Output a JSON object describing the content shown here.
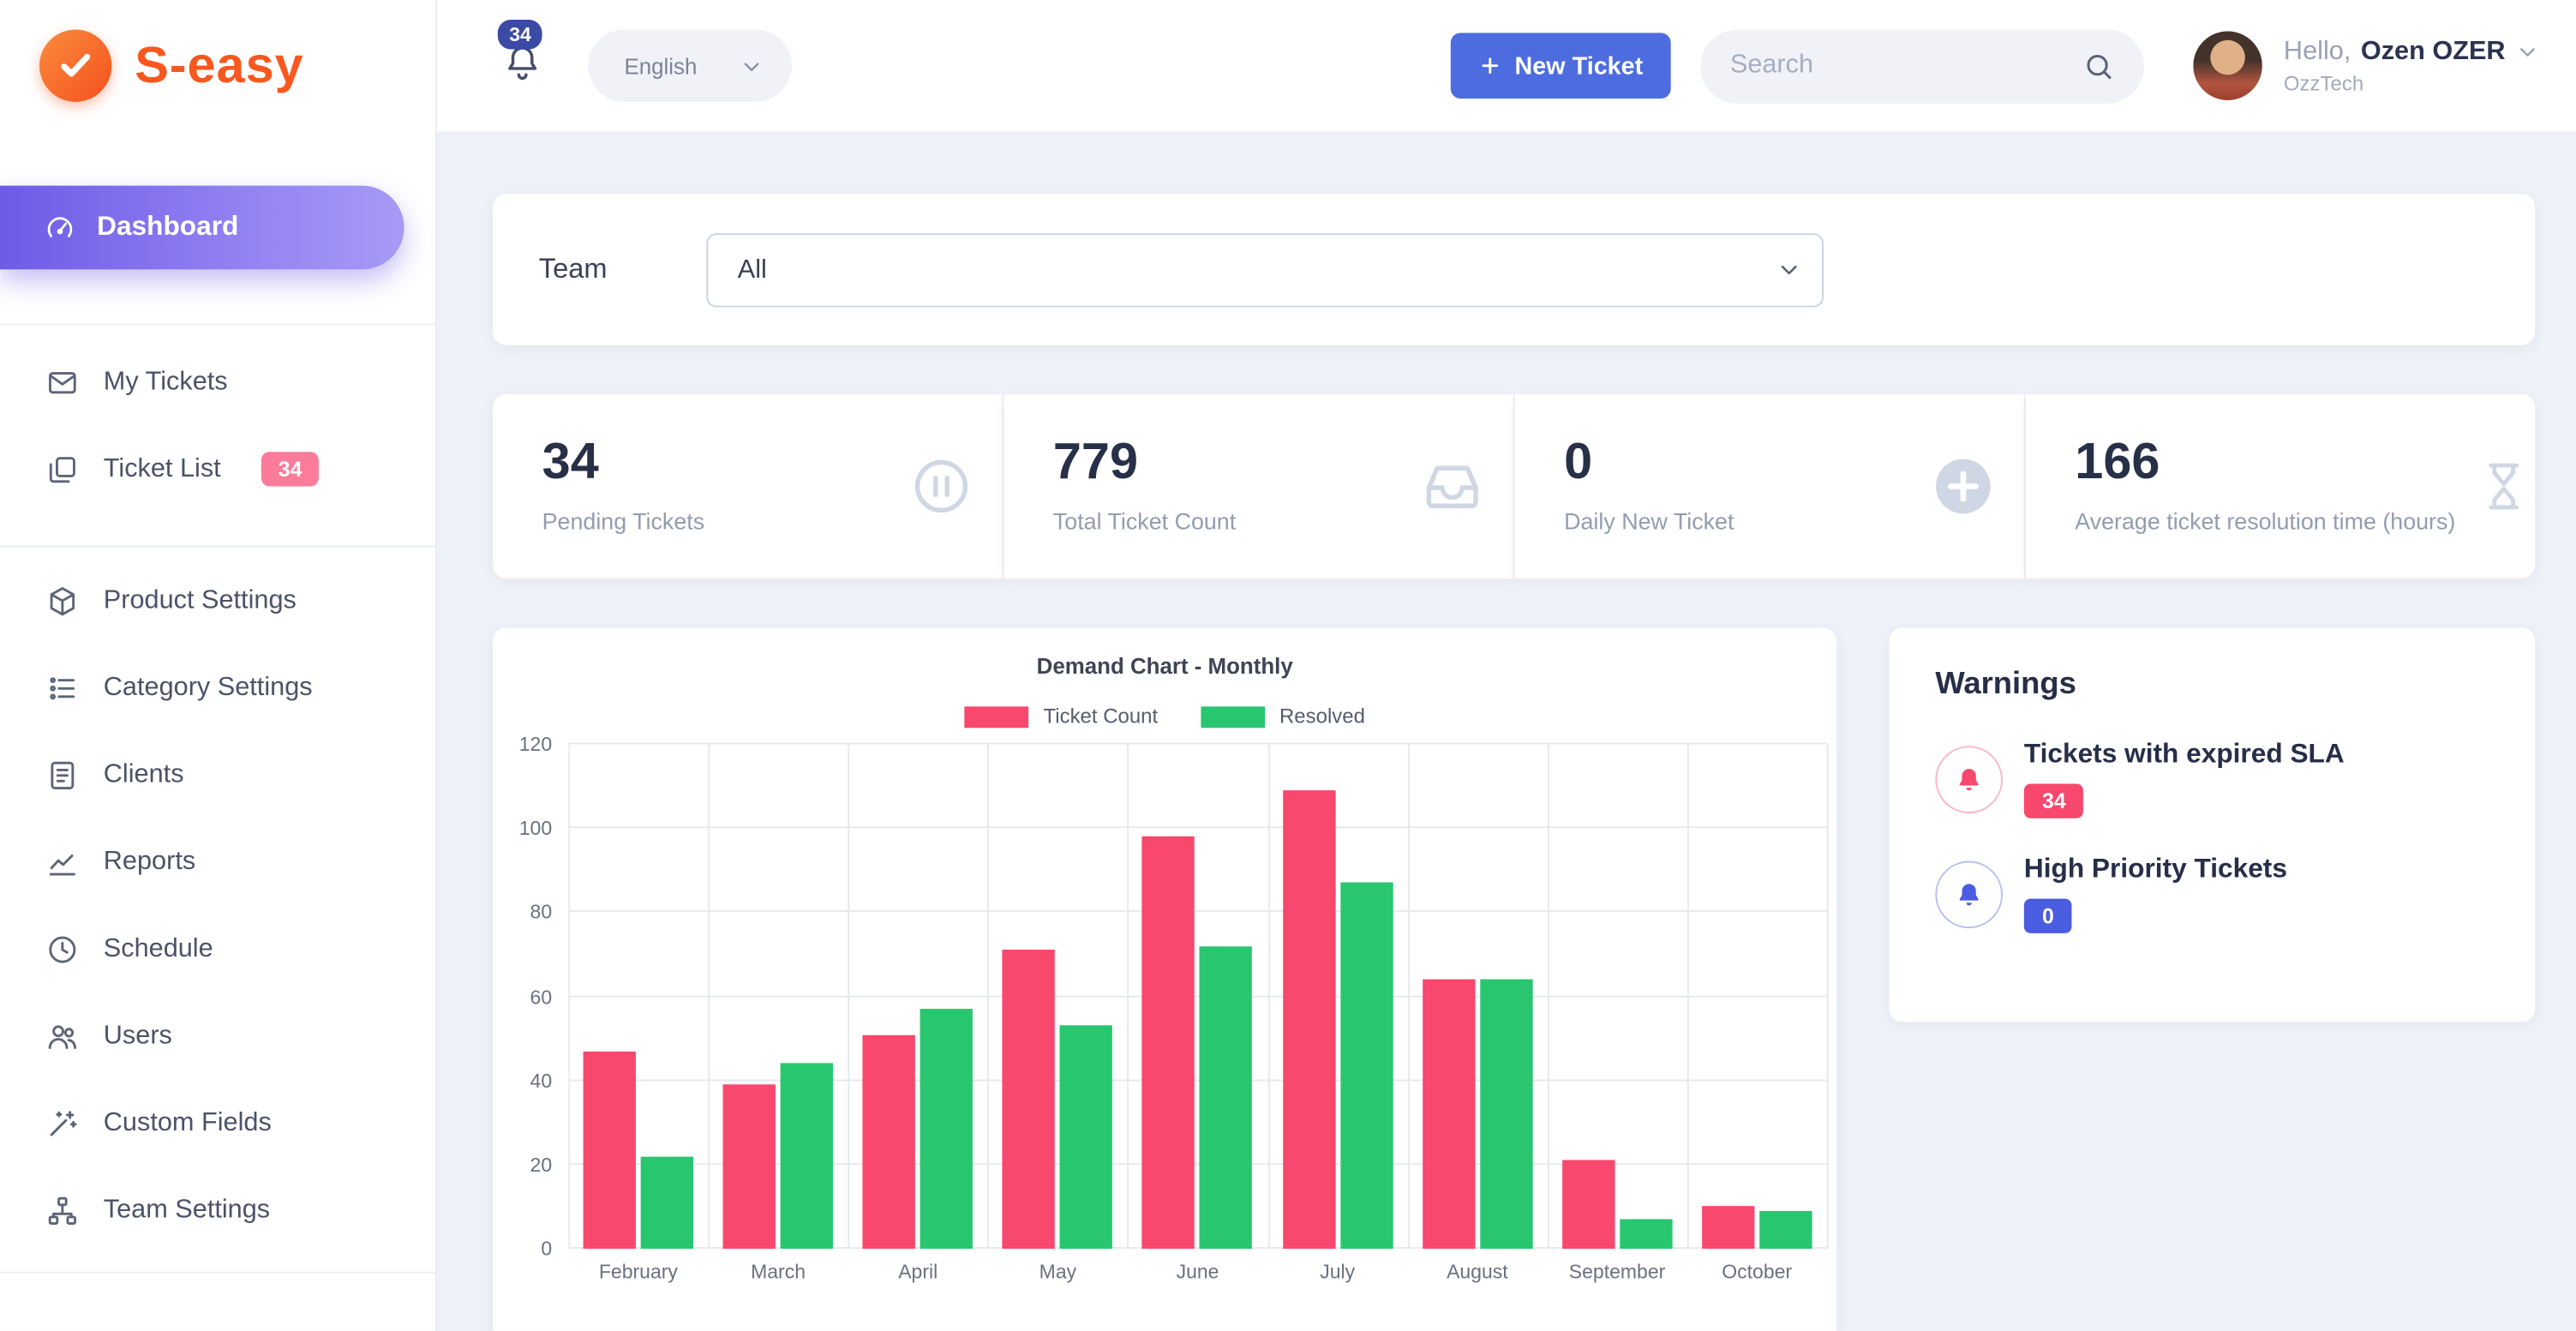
{
  "brand": {
    "name": "S-easy",
    "logo_icon": "check-icon",
    "accent_color": "#f8581f"
  },
  "header": {
    "notifications": {
      "icon": "bell-icon",
      "badge": "34",
      "badge_color": "#3a4aa5"
    },
    "language": {
      "label": "English",
      "icon": "chevron-down-icon"
    },
    "new_ticket_button": {
      "label": "New Ticket",
      "icon": "plus-icon",
      "color": "#4c6ce0"
    },
    "search": {
      "placeholder": "Search",
      "icon": "search-icon"
    },
    "user": {
      "greeting": "Hello,",
      "name": "Ozen OZER",
      "company": "OzzTech",
      "icon": "chevron-down-icon"
    }
  },
  "sidebar": {
    "active_item": {
      "label": "Dashboard",
      "icon": "speedometer-icon",
      "gradient": [
        "#6e5be6",
        "#a79bf5"
      ]
    },
    "groups": [
      {
        "items": [
          {
            "label": "My Tickets",
            "icon": "envelope-icon"
          },
          {
            "label": "Ticket List",
            "icon": "tickets-icon",
            "badge": "34",
            "badge_color": "#fb7c9a"
          }
        ]
      },
      {
        "items": [
          {
            "label": "Product Settings",
            "icon": "product-icon"
          },
          {
            "label": "Category Settings",
            "icon": "category-icon"
          },
          {
            "label": "Clients",
            "icon": "clients-icon"
          },
          {
            "label": "Reports",
            "icon": "reports-icon"
          },
          {
            "label": "Schedule",
            "icon": "schedule-icon"
          },
          {
            "label": "Users",
            "icon": "users-icon"
          },
          {
            "label": "Custom Fields",
            "icon": "custom-fields-icon"
          },
          {
            "label": "Team Settings",
            "icon": "team-settings-icon"
          }
        ]
      }
    ]
  },
  "filter": {
    "label": "Team",
    "value": "All",
    "options": [
      "All"
    ]
  },
  "stats": [
    {
      "value": "34",
      "label": "Pending Tickets",
      "icon": "pause-circle-icon"
    },
    {
      "value": "779",
      "label": "Total Ticket Count",
      "icon": "inbox-icon"
    },
    {
      "value": "0",
      "label": "Daily New Ticket",
      "icon": "plus-circle-icon"
    },
    {
      "value": "166",
      "label": "Average ticket resolution time (hours)",
      "icon": "hourglass-icon"
    }
  ],
  "chart_data": {
    "type": "bar",
    "title": "Demand Chart - Monthly",
    "categories": [
      "February",
      "March",
      "April",
      "May",
      "June",
      "July",
      "August",
      "September",
      "October"
    ],
    "series": [
      {
        "name": "Ticket Count",
        "color": "#f8486d",
        "values": [
          47,
          39,
          51,
          71,
          98,
          109,
          64,
          21,
          10
        ]
      },
      {
        "name": "Resolved",
        "color": "#28c76f",
        "values": [
          22,
          44,
          57,
          53,
          72,
          87,
          64,
          7,
          9
        ]
      }
    ],
    "ylim": [
      0,
      120
    ],
    "ytick_step": 20,
    "grid": true,
    "legend_position": "top"
  },
  "warnings": {
    "title": "Warnings",
    "items": [
      {
        "label": "Tickets with expired SLA",
        "badge": "34",
        "color": "#f8486d",
        "icon": "bell-solid-icon"
      },
      {
        "label": "High Priority Tickets",
        "badge": "0",
        "color": "#4a5ce0",
        "icon": "bell-solid-icon"
      }
    ]
  }
}
